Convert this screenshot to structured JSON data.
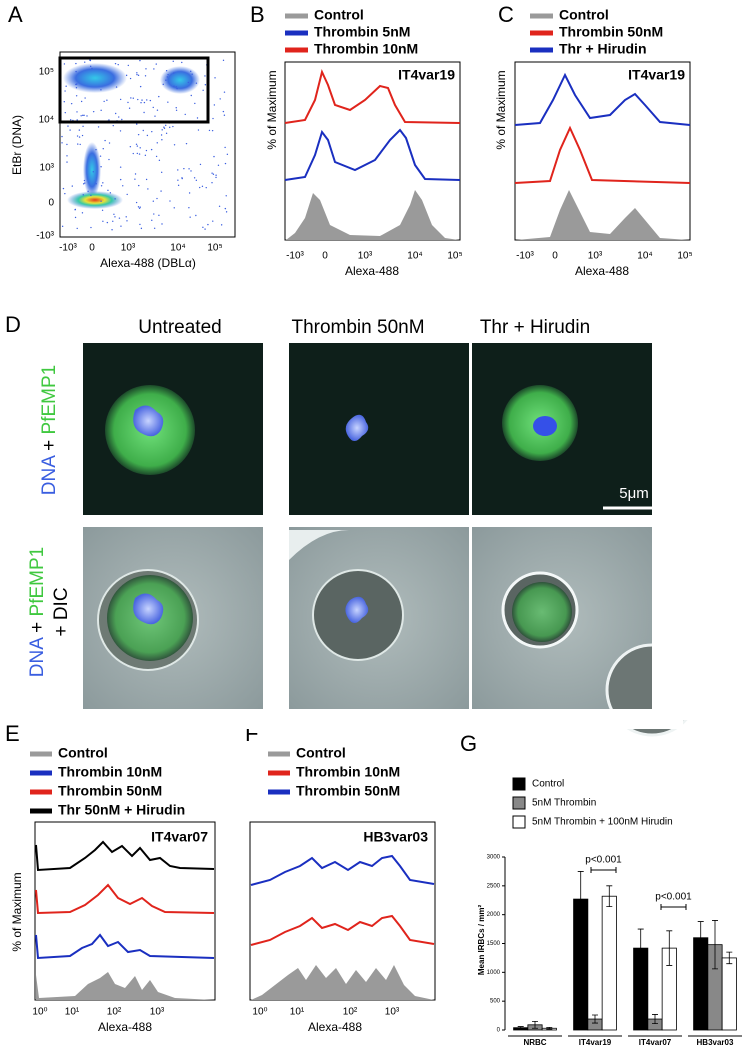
{
  "panel_labels": [
    "A",
    "B",
    "C",
    "D",
    "E",
    "F",
    "G"
  ],
  "panel_a": {
    "x_label": "Alexa-488 (DBLα)",
    "y_label": "EtBr (DNA)",
    "yticks": [
      "10⁵",
      "10⁴",
      "10³",
      "0",
      "-10³"
    ],
    "xticks": [
      "-10³",
      "0",
      "10³",
      "10⁴",
      "10⁵"
    ]
  },
  "panel_b": {
    "legend": [
      "Control",
      "Thrombin 5nM",
      "Thrombin 10nM"
    ],
    "sample": "IT4var19",
    "y_label": "% of Maximum",
    "x_label": "Alexa-488",
    "xticks": [
      "-10³",
      "0",
      "10³",
      "10⁴",
      "10⁵"
    ]
  },
  "panel_c": {
    "legend": [
      "Control",
      "Thrombin 50nM",
      "Thr + Hirudin"
    ],
    "sample": "IT4var19",
    "y_label": "% of Maximum",
    "x_label": "Alexa-488",
    "xticks": [
      "-10³",
      "0",
      "10³",
      "10⁴",
      "10⁵"
    ]
  },
  "panel_d": {
    "columns": [
      "Untreated",
      "Thrombin 50nM",
      "Thr + Hirudin"
    ],
    "row_labels": [
      [
        "DNA",
        "+",
        "PfEMP1"
      ],
      [
        "DNA",
        "+",
        "PfEMP1",
        "+ DIC"
      ]
    ],
    "scale_bar": "5μm"
  },
  "panel_e": {
    "legend": [
      "Control",
      "Thrombin 10nM",
      "Thrombin 50nM",
      "Thr 50nM + Hirudin"
    ],
    "sample": "IT4var07",
    "y_label": "% of Maximum",
    "x_label": "Alexa-488",
    "xticks": [
      "10⁰",
      "10¹",
      "10²",
      "10³"
    ]
  },
  "panel_f": {
    "legend": [
      "Control",
      "Thrombin 10nM",
      "Thrombin 50nM"
    ],
    "sample": "HB3var03",
    "x_label": "Alexa-488",
    "xticks": [
      "10⁰",
      "10¹",
      "10²",
      "10³"
    ]
  },
  "chart_data": {
    "type": "bar",
    "y_label": "Mean IRBCs / mm²",
    "categories": [
      "NRBC",
      "IT4var19",
      "IT4var07",
      "HB3var03"
    ],
    "series": [
      {
        "name": "Control",
        "color": "#000000",
        "values": [
          40,
          2270,
          1420,
          1600
        ],
        "errors": [
          20,
          480,
          330,
          280
        ]
      },
      {
        "name": "5nM Thrombin",
        "color": "#888888",
        "values": [
          90,
          190,
          190,
          1480
        ],
        "errors": [
          60,
          70,
          80,
          420
        ]
      },
      {
        "name": "5nM Thrombin + 100nM Hirudin",
        "color": "#ffffff",
        "values": [
          30,
          2320,
          1420,
          1250
        ],
        "errors": [
          15,
          180,
          300,
          100
        ]
      }
    ],
    "ylim": [
      0,
      3000
    ],
    "yticks": [
      0,
      500,
      1000,
      1500,
      2000,
      2500,
      3000
    ],
    "annotations": [
      "p<0.001",
      "p<0.001"
    ]
  }
}
